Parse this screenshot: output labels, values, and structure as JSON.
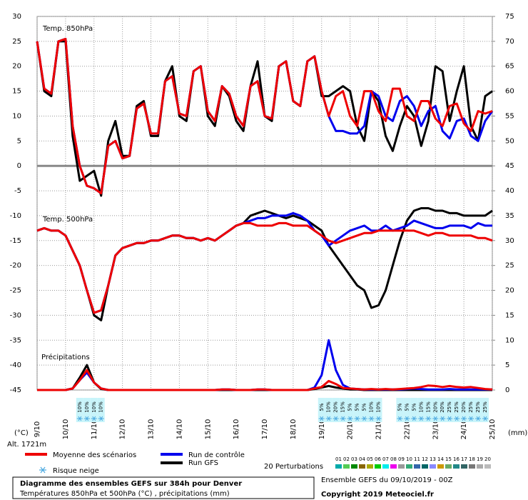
{
  "chart_data": {
    "type": "line",
    "title": "Diagramme des ensembles GEFS sur 384h pour Denver",
    "subtitle": "Températures 850hPa et 500hPa (°C) , précipitations (mm)",
    "run_info": "Ensemble GEFS du 09/10/2019 - 00Z",
    "copyright": "Copyright 2019 Meteociel.fr",
    "ylabel": "(°C)",
    "y2label": "(mm)",
    "altitude": "Alt. 1721m",
    "xlim": [
      0,
      384
    ],
    "xticks": [
      {
        "value": 0,
        "label": "9/10"
      },
      {
        "value": 24,
        "label": "10/10"
      },
      {
        "value": 48,
        "label": "11/10"
      },
      {
        "value": 72,
        "label": "12/10"
      },
      {
        "value": 96,
        "label": "13/10"
      },
      {
        "value": 120,
        "label": "14/10"
      },
      {
        "value": 144,
        "label": "15/10"
      },
      {
        "value": 168,
        "label": "16/10"
      },
      {
        "value": 192,
        "label": "17/10"
      },
      {
        "value": 216,
        "label": "18/10"
      },
      {
        "value": 240,
        "label": "19/10"
      },
      {
        "value": 264,
        "label": "20/10"
      },
      {
        "value": 288,
        "label": "21/10"
      },
      {
        "value": 312,
        "label": "22/10"
      },
      {
        "value": 336,
        "label": "23/10"
      },
      {
        "value": 360,
        "label": "24/10"
      },
      {
        "value": 384,
        "label": "25/10"
      }
    ],
    "ylim": [
      -45,
      30
    ],
    "yticks": [
      30,
      25,
      20,
      15,
      10,
      5,
      0,
      -5,
      -10,
      -15,
      -20,
      -25,
      -30,
      -35,
      -40,
      -45
    ],
    "y2lim": [
      0,
      75
    ],
    "y2ticks": [
      75,
      70,
      65,
      60,
      55,
      50,
      45,
      40,
      35,
      30,
      25,
      20,
      15,
      10,
      5,
      0
    ],
    "grid": true,
    "x": [
      0,
      6,
      12,
      18,
      24,
      30,
      36,
      42,
      48,
      54,
      60,
      66,
      72,
      78,
      84,
      90,
      96,
      102,
      108,
      114,
      120,
      126,
      132,
      138,
      144,
      150,
      156,
      162,
      168,
      174,
      180,
      186,
      192,
      198,
      204,
      210,
      216,
      222,
      228,
      234,
      240,
      246,
      252,
      258,
      264,
      270,
      276,
      282,
      288,
      294,
      300,
      306,
      312,
      318,
      324,
      330,
      336,
      342,
      348,
      354,
      360,
      366,
      372,
      378,
      384
    ],
    "panels": [
      {
        "label": "Temp. 850hPa",
        "series": [
          {
            "name": "Run GFS",
            "color": "#000000",
            "values": [
              25,
              15,
              14,
              25,
              25,
              6,
              -3,
              -2,
              -1,
              -6,
              5,
              9,
              2,
              2,
              12,
              13,
              6,
              6,
              17,
              20,
              10,
              9,
              19,
              20,
              10,
              8,
              16,
              14,
              9,
              7,
              16,
              21,
              10,
              9,
              20,
              21,
              13,
              12,
              21,
              22,
              14,
              14,
              15,
              16,
              15,
              8,
              5,
              15,
              13,
              6,
              3,
              8,
              12,
              10,
              4,
              9,
              20,
              19,
              9,
              15,
              20,
              8,
              5,
              14,
              15
            ]
          },
          {
            "name": "Run de contrôle",
            "color": "#0000ee",
            "values": [
              25,
              15.5,
              14.5,
              25,
              25.5,
              8,
              0,
              -4,
              -4.5,
              -5.5,
              4,
              5,
              1.5,
              2,
              11.5,
              12.5,
              6.5,
              6.5,
              17,
              18,
              10.5,
              10,
              19,
              20,
              11,
              9,
              16,
              14.5,
              10,
              8,
              16,
              17,
              10,
              9.5,
              20,
              21,
              13,
              12,
              21,
              22,
              15,
              10,
              7,
              7,
              6.5,
              6.5,
              8,
              15,
              14,
              10,
              9,
              13,
              14,
              12,
              8,
              11,
              12,
              7,
              5.5,
              9,
              9.5,
              6,
              5,
              9,
              11
            ]
          },
          {
            "name": "Moyenne des scénarios",
            "color": "#ee0000",
            "values": [
              25,
              15.5,
              14.5,
              25,
              25.5,
              8,
              0,
              -4,
              -4.5,
              -5.5,
              4,
              5,
              1.5,
              2,
              11.5,
              12.5,
              6.5,
              6.5,
              17,
              18,
              10.5,
              10,
              19,
              20,
              11,
              9,
              16,
              14.5,
              10,
              8,
              16,
              17,
              10,
              9.5,
              20,
              21,
              13,
              12,
              21,
              22,
              15,
              10,
              14,
              15,
              10,
              8,
              15,
              15,
              11,
              9,
              15.5,
              15.5,
              10,
              9,
              13,
              13,
              9.5,
              8,
              12,
              12.5,
              8.5,
              7,
              11,
              10.5,
              11
            ]
          }
        ]
      },
      {
        "label": "Temp. 500hPa",
        "series": [
          {
            "name": "Run GFS",
            "color": "#000000",
            "values": [
              -13,
              -12.5,
              -13,
              -13,
              -14,
              -17,
              -20,
              -25,
              -30,
              -31,
              -24,
              -18,
              -16.5,
              -16,
              -15.5,
              -15.5,
              -15,
              -15,
              -14.5,
              -14,
              -14,
              -14.5,
              -14.5,
              -15,
              -14.5,
              -15,
              -14,
              -13,
              -12,
              -11.5,
              -10,
              -9.5,
              -9,
              -9.5,
              -10,
              -10.5,
              -10,
              -10.5,
              -11,
              -12,
              -13,
              -16,
              -18,
              -20,
              -22,
              -24,
              -25,
              -28.5,
              -28,
              -25,
              -20,
              -15,
              -11,
              -9,
              -8.5,
              -8.5,
              -9,
              -9,
              -9.5,
              -9.5,
              -10,
              -10,
              -10,
              -10,
              -9
            ]
          },
          {
            "name": "Run de contrôle",
            "color": "#0000ee",
            "values": [
              -13,
              -12.5,
              -13,
              -13,
              -14,
              -17,
              -20,
              -25,
              -29.5,
              -29,
              -24,
              -18,
              -16.5,
              -16,
              -15.5,
              -15.5,
              -15,
              -15,
              -14.5,
              -14,
              -14,
              -14.5,
              -14.5,
              -15,
              -14.5,
              -15,
              -14,
              -13,
              -12,
              -11.5,
              -11,
              -10.5,
              -10.5,
              -10,
              -10,
              -10,
              -9.5,
              -10,
              -11,
              -13,
              -14,
              -16,
              -15,
              -14,
              -13,
              -12.5,
              -12,
              -13,
              -13,
              -12,
              -13,
              -12.5,
              -12,
              -11,
              -11.5,
              -12,
              -12.5,
              -12.5,
              -12,
              -12,
              -12,
              -12.5,
              -11.5,
              -12,
              -12
            ]
          },
          {
            "name": "Moyenne des scénarios",
            "color": "#ee0000",
            "values": [
              -13,
              -12.5,
              -13,
              -13,
              -14,
              -17,
              -20,
              -25,
              -29.5,
              -29,
              -24,
              -18,
              -16.5,
              -16,
              -15.5,
              -15.5,
              -15,
              -15,
              -14.5,
              -14,
              -14,
              -14.5,
              -14.5,
              -15,
              -14.5,
              -15,
              -14,
              -13,
              -12,
              -11.5,
              -11.5,
              -12,
              -12,
              -12,
              -11.5,
              -11.5,
              -12,
              -12,
              -12,
              -13,
              -14,
              -15,
              -15.5,
              -15,
              -14.5,
              -14,
              -13.5,
              -13.5,
              -13,
              -13,
              -13,
              -13,
              -13,
              -13,
              -13.5,
              -14,
              -13.5,
              -13.5,
              -14,
              -14,
              -14,
              -14,
              -14.5,
              -14.5,
              -15
            ]
          }
        ]
      },
      {
        "label": "Précipitations",
        "series": [
          {
            "name": "Run GFS",
            "color": "#000000",
            "axis": "y2",
            "values": [
              0,
              0,
              0,
              0,
              0,
              0.3,
              2.5,
              5,
              1.5,
              0.2,
              0,
              0,
              0,
              0,
              0,
              0,
              0,
              0,
              0,
              0,
              0,
              0,
              0,
              0,
              0,
              0,
              0,
              0,
              0,
              0,
              0,
              0,
              0,
              0,
              0,
              0,
              0,
              0,
              0,
              0.2,
              0.5,
              0.8,
              0.5,
              0.3,
              0.1,
              0.1,
              0,
              0,
              0,
              0,
              0,
              0,
              0,
              0,
              0,
              0,
              0,
              0,
              0,
              0,
              0,
              0,
              0,
              0,
              0
            ]
          },
          {
            "name": "Run de contrôle",
            "color": "#0000ee",
            "axis": "y2",
            "values": [
              0,
              0,
              0,
              0,
              0,
              0.3,
              2,
              3.5,
              1.5,
              0.3,
              0,
              0,
              0,
              0,
              0,
              0,
              0,
              0,
              0,
              0,
              0,
              0,
              0,
              0,
              0,
              0,
              0.1,
              0.1,
              0,
              0,
              0,
              0.1,
              0.1,
              0,
              0,
              0,
              0,
              0,
              0,
              0.5,
              3,
              10,
              4,
              1,
              0.3,
              0.2,
              0.1,
              0.1,
              0.1,
              0.1,
              0.1,
              0.1,
              0.2,
              0.3,
              0.2,
              0.1,
              0.1,
              0.1,
              0.2,
              0.1,
              0.1,
              0.1,
              0.1,
              0.1,
              0.1
            ]
          },
          {
            "name": "Moyenne des scénarios",
            "color": "#ee0000",
            "axis": "y2",
            "values": [
              0,
              0,
              0,
              0,
              0,
              0.3,
              2,
              4,
              1.5,
              0.3,
              0,
              0,
              0,
              0,
              0,
              0,
              0,
              0,
              0,
              0,
              0,
              0,
              0,
              0,
              0,
              0,
              0.1,
              0.1,
              0,
              0,
              0,
              0.1,
              0.1,
              0,
              0,
              0,
              0,
              0,
              0,
              0.3,
              0.6,
              1.8,
              1.2,
              0.4,
              0.3,
              0.2,
              0.1,
              0.2,
              0.1,
              0.2,
              0.1,
              0.2,
              0.3,
              0.4,
              0.6,
              0.9,
              0.8,
              0.6,
              0.8,
              0.6,
              0.5,
              0.6,
              0.4,
              0.2,
              0.1
            ]
          }
        ]
      }
    ],
    "snow_risk": {
      "label": "Risque neige",
      "x": [
        36,
        42,
        48,
        54,
        240,
        246,
        252,
        258,
        264,
        270,
        276,
        282,
        288,
        306,
        312,
        318,
        324,
        330,
        336,
        342,
        348,
        354,
        360,
        366,
        372,
        378
      ],
      "values": [
        10,
        10,
        10,
        10,
        5,
        10,
        20,
        15,
        5,
        5,
        5,
        10,
        10,
        5,
        5,
        5,
        10,
        15,
        20,
        20,
        25,
        25,
        20,
        25,
        25,
        25
      ],
      "value_labels": [
        "10%",
        "10%",
        "10%",
        "10%",
        "5%",
        "10%",
        "20%",
        "15%",
        "5%",
        "5%",
        "5%",
        "10%",
        "10%",
        "5%",
        "5%",
        "5%",
        "10%",
        "15%",
        "20%",
        "20%",
        "25%",
        "25%",
        "20%",
        "25%",
        "25%",
        "25%"
      ]
    },
    "perturbations": {
      "label": "20 Perturbations",
      "members": [
        {
          "name": "01",
          "color": "#00aaaa"
        },
        {
          "name": "02",
          "color": "#55cc55"
        },
        {
          "name": "03",
          "color": "#008800"
        },
        {
          "name": "04",
          "color": "#886600"
        },
        {
          "name": "05",
          "color": "#aaaa00"
        },
        {
          "name": "06",
          "color": "#00cc00"
        },
        {
          "name": "07",
          "color": "#00eeee"
        },
        {
          "name": "08",
          "color": "#ee00ee"
        },
        {
          "name": "09",
          "color": "#999999"
        },
        {
          "name": "10",
          "color": "#33aa77"
        },
        {
          "name": "11",
          "color": "#3366aa"
        },
        {
          "name": "12",
          "color": "#006666"
        },
        {
          "name": "13",
          "color": "#8888ff"
        },
        {
          "name": "14",
          "color": "#cc9900"
        },
        {
          "name": "15",
          "color": "#66aa66"
        },
        {
          "name": "16",
          "color": "#228888"
        },
        {
          "name": "17",
          "color": "#336666"
        },
        {
          "name": "18",
          "color": "#777777"
        },
        {
          "name": "19",
          "color": "#aaaaaa"
        },
        {
          "name": "20",
          "color": "#bbbbbb"
        }
      ]
    }
  }
}
